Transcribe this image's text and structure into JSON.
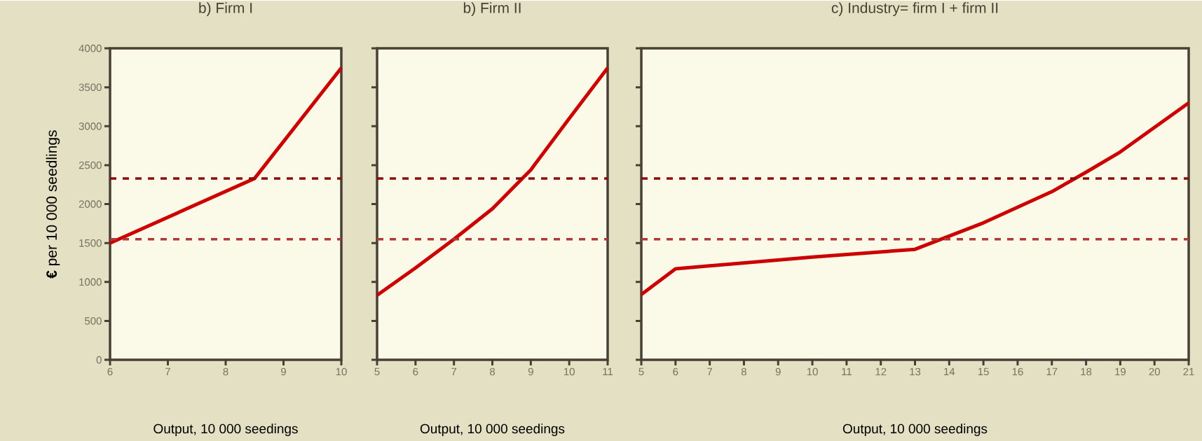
{
  "chart_data": [
    {
      "type": "line",
      "title": "b) Firm I",
      "xlabel": "Output, 10 000 seedings",
      "ylabel": "**€** per 10 000 seedlings",
      "x": [
        6,
        8.5,
        10
      ],
      "series": [
        {
          "color": "#cc0000",
          "values": [
            1500,
            2330,
            3750
          ]
        }
      ],
      "xlim": [
        6,
        10
      ],
      "ylim": [
        0,
        4000
      ],
      "xticks": [
        6,
        7,
        8,
        9,
        10
      ],
      "yticks": [
        0,
        500,
        1000,
        1500,
        2000,
        2500,
        3000,
        3500,
        4000
      ],
      "ref_lines": [
        {
          "axis": "y",
          "value": 2330,
          "color": "#8b0a0a",
          "line_style": "dashed"
        },
        {
          "axis": "y",
          "value": 1550,
          "color": "#b03a3a",
          "line_style": "dashed"
        }
      ]
    },
    {
      "type": "line",
      "title": "b) Firm II",
      "xlabel": "Output, 10 000 seedings",
      "x": [
        5,
        6,
        7,
        8,
        9,
        10,
        11
      ],
      "series": [
        {
          "color": "#cc0000",
          "values": [
            830,
            1180,
            1550,
            1940,
            2440,
            3100,
            3750
          ]
        }
      ],
      "xlim": [
        5,
        11
      ],
      "ylim": [
        0,
        4000
      ],
      "xticks": [
        5,
        6,
        7,
        8,
        9,
        10,
        11
      ],
      "yticks": [
        0,
        500,
        1000,
        1500,
        2000,
        2500,
        3000,
        3500,
        4000
      ],
      "tick_labels": "x",
      "ref_lines": [
        {
          "axis": "y",
          "value": 2330,
          "color": "#8b0a0a",
          "line_style": "dashed"
        },
        {
          "axis": "y",
          "value": 1550,
          "color": "#b03a3a",
          "line_style": "dashed"
        }
      ]
    },
    {
      "type": "line",
      "title": "c) Industry= firm I + firm II",
      "xlabel": "Output, 10 000 seedings",
      "x": [
        5,
        6,
        10,
        13,
        15,
        17,
        18,
        19,
        21
      ],
      "series": [
        {
          "color": "#cc0000",
          "values": [
            840,
            1170,
            1320,
            1420,
            1760,
            2160,
            2410,
            2670,
            3300
          ]
        }
      ],
      "xlim": [
        5,
        21
      ],
      "ylim": [
        0,
        4000
      ],
      "xticks": [
        5,
        6,
        7,
        8,
        9,
        10,
        11,
        12,
        13,
        14,
        15,
        16,
        17,
        18,
        19,
        20,
        21
      ],
      "yticks": [
        0,
        500,
        1000,
        1500,
        2000,
        2500,
        3000,
        3500,
        4000
      ],
      "tick_labels": "x",
      "ref_lines": [
        {
          "axis": "y",
          "value": 2330,
          "color": "#8b0a0a",
          "line_style": "dashed"
        },
        {
          "axis": "y",
          "value": 1550,
          "color": "#b03a3a",
          "line_style": "dashed"
        }
      ]
    }
  ]
}
